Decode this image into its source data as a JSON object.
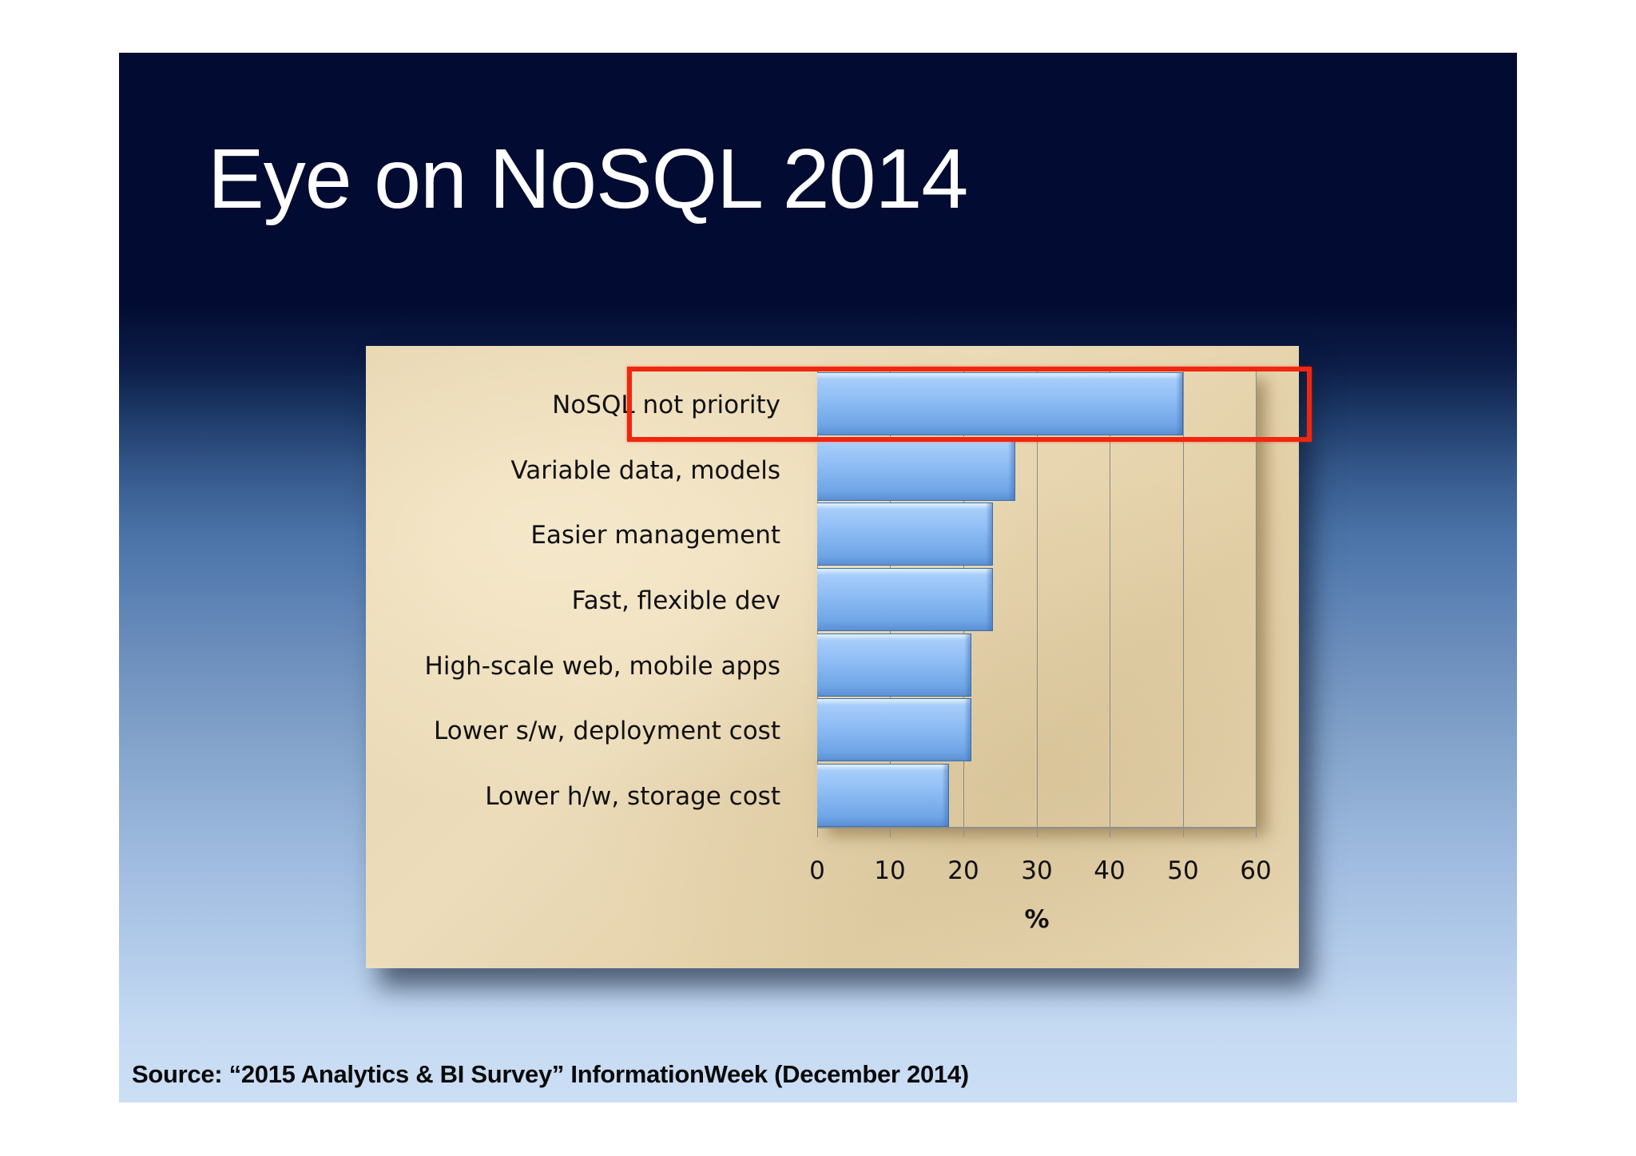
{
  "slide": {
    "title": "Eye on NoSQL 2014",
    "source": "Source: “2015 Analytics & BI Survey” InformationWeek (December 2014)",
    "colors": {
      "background_top": "#020b31",
      "background_bottom": "#cbdef4",
      "panel": "#e8d7b2",
      "bar": "#8dbcf4",
      "highlight": "#f0260f"
    }
  },
  "chart_data": {
    "type": "bar",
    "orientation": "horizontal",
    "title": "",
    "xlabel": "%",
    "ylabel": "",
    "xlim": [
      0,
      60
    ],
    "x_ticks": [
      "0",
      "10",
      "20",
      "30",
      "40",
      "50",
      "60"
    ],
    "grid": true,
    "legend": "none",
    "categories": [
      "NoSQL not priority",
      "Variable data, models",
      "Easier management",
      "Fast, flexible dev",
      "High-scale web, mobile apps",
      "Lower s/w, deployment cost",
      "Lower h/w, storage cost"
    ],
    "values": [
      50,
      27,
      24,
      24,
      21,
      21,
      18
    ],
    "annotations": [
      {
        "type": "highlight-box",
        "target": "NoSQL not priority",
        "color": "#f0260f"
      }
    ]
  }
}
